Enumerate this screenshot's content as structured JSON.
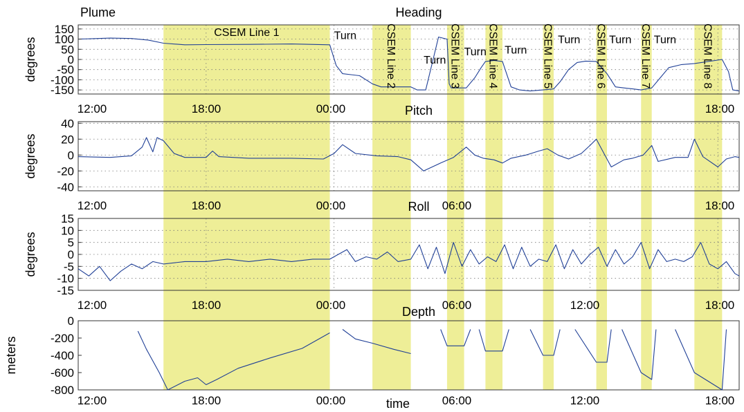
{
  "figure": {
    "plume_label": "Plume",
    "xlabel": "time"
  },
  "chart_data": [
    {
      "type": "line",
      "title": "Heading",
      "ylabel": "degrees",
      "ylim": [
        -170,
        170
      ],
      "yticks": [
        150,
        100,
        50,
        0,
        -50,
        -100,
        -150
      ],
      "ytick_labels": [
        "150",
        "100",
        "50",
        "0",
        "-50",
        "-100",
        "-150"
      ],
      "xlim": [
        12.0,
        43.0
      ],
      "xticks": [
        12,
        18,
        24,
        30,
        36,
        42
      ],
      "xtick_labels": [
        "12:00",
        "18:00",
        "00:00",
        "",
        "",
        "18:00"
      ],
      "grid": true,
      "highlight_bands": [
        {
          "label": "CSEM Line 1",
          "x": [
            16.0,
            23.8
          ]
        },
        {
          "label": "CSEM Line 2",
          "x": [
            25.8,
            27.6
          ]
        },
        {
          "label": "CSEM Line 3",
          "x": [
            29.3,
            30.1
          ]
        },
        {
          "label": "CSEM Line 4",
          "x": [
            31.1,
            31.9
          ]
        },
        {
          "label": "CSEM Line 5",
          "x": [
            33.8,
            34.3
          ]
        },
        {
          "label": "CSEM Line 6",
          "x": [
            36.3,
            36.8
          ]
        },
        {
          "label": "CSEM Line 7",
          "x": [
            38.4,
            38.9
          ]
        },
        {
          "label": "CSEM Line 8",
          "x": [
            40.9,
            42.2
          ]
        }
      ],
      "annotations": [
        {
          "text": "Turn",
          "x": 24.0,
          "y": 120
        },
        {
          "text": "Turn",
          "x": 28.2,
          "y": 0
        },
        {
          "text": "Turn",
          "x": 30.1,
          "y": 40
        },
        {
          "text": "Turn",
          "x": 32.0,
          "y": 50
        },
        {
          "text": "Turn",
          "x": 34.5,
          "y": 100
        },
        {
          "text": "Turn",
          "x": 36.9,
          "y": 100
        },
        {
          "text": "Turn",
          "x": 39.0,
          "y": 100
        }
      ],
      "series": [
        {
          "x": [
            12.0,
            13.5,
            14.5,
            15.3,
            16.0,
            17.0,
            18.0,
            20.0,
            22.0,
            23.8,
            24.1,
            24.4,
            25.2,
            25.8,
            26.2,
            27.6,
            27.9,
            28.3,
            28.9,
            29.3,
            29.4,
            29.5,
            30.2,
            30.6,
            30.9,
            31.1,
            31.5,
            31.9,
            32.3,
            32.7,
            33.2,
            33.8,
            34.3,
            34.6,
            35.0,
            35.4,
            35.8,
            36.3,
            36.8,
            37.2,
            37.6,
            38.0,
            38.4,
            38.9,
            39.3,
            39.7,
            40.3,
            40.9,
            42.2,
            42.5,
            42.7,
            43.0
          ],
          "y": [
            100,
            105,
            103,
            95,
            80,
            72,
            73,
            74,
            76,
            72,
            -30,
            -70,
            -80,
            -120,
            -135,
            -135,
            -150,
            -150,
            110,
            100,
            -120,
            -140,
            -140,
            -90,
            -40,
            -10,
            -5,
            -10,
            -135,
            -150,
            -155,
            -150,
            -145,
            -110,
            -50,
            -15,
            -8,
            -10,
            -70,
            -135,
            -140,
            -145,
            -150,
            -140,
            -90,
            -40,
            -25,
            -20,
            0,
            -60,
            -150,
            -155
          ]
        }
      ]
    },
    {
      "type": "line",
      "title": "Pitch",
      "ylabel": "degrees",
      "ylim": [
        -45,
        42
      ],
      "yticks": [
        40,
        20,
        0,
        -20,
        -40
      ],
      "ytick_labels": [
        "40",
        "20",
        "0",
        "-20",
        "-40"
      ],
      "xlim": [
        12.0,
        43.0
      ],
      "xticks": [
        12,
        18,
        24,
        30,
        36,
        42
      ],
      "xtick_labels": [
        "12:00",
        "18:00",
        "00:00",
        "06:00",
        "",
        "18:00"
      ],
      "grid": true,
      "series": [
        {
          "x": [
            12.0,
            13.5,
            14.5,
            15.0,
            15.2,
            15.5,
            15.7,
            16.0,
            16.5,
            17.0,
            18.0,
            18.3,
            18.6,
            20.0,
            22.0,
            23.5,
            24.0,
            24.4,
            25.0,
            26.0,
            27.0,
            27.6,
            28.2,
            29.0,
            29.6,
            30.2,
            30.6,
            31.0,
            31.5,
            31.9,
            32.3,
            33.0,
            33.6,
            34.0,
            34.5,
            35.0,
            35.6,
            36.0,
            36.3,
            36.7,
            37.0,
            37.6,
            38.0,
            38.5,
            38.9,
            39.2,
            40.0,
            40.6,
            40.9,
            41.3,
            42.0,
            42.4,
            42.8,
            43.0
          ],
          "y": [
            -2,
            -3,
            -1,
            10,
            22,
            4,
            22,
            18,
            2,
            -3,
            -3,
            5,
            -2,
            -4,
            -4,
            -5,
            2,
            13,
            2,
            -1,
            -2,
            -6,
            -20,
            -10,
            -3,
            10,
            0,
            -4,
            -6,
            -10,
            -4,
            0,
            5,
            8,
            0,
            -5,
            2,
            12,
            20,
            0,
            -15,
            -6,
            -4,
            0,
            12,
            -8,
            -3,
            -3,
            20,
            -2,
            -15,
            -5,
            -2,
            -3
          ]
        }
      ]
    },
    {
      "type": "line",
      "title": "Roll",
      "ylabel": "degrees",
      "ylim": [
        -15,
        15
      ],
      "yticks": [
        15,
        10,
        5,
        0,
        -5,
        -10,
        -15
      ],
      "ytick_labels": [
        "15",
        "10",
        "5",
        "0",
        "-5",
        "-10",
        "-15"
      ],
      "xlim": [
        12.0,
        43.0
      ],
      "xticks": [
        12,
        18,
        24,
        30,
        36,
        42
      ],
      "xtick_labels": [
        "12:00",
        "18:00",
        "00:00",
        "06:00",
        "12:00",
        "18:00"
      ],
      "grid": true,
      "series": [
        {
          "x": [
            12.0,
            12.5,
            13.0,
            13.5,
            14.0,
            14.5,
            15.0,
            15.5,
            16.0,
            17.0,
            18.0,
            19.0,
            20.0,
            21.0,
            22.0,
            23.0,
            23.8,
            24.2,
            24.6,
            25.0,
            25.5,
            26.0,
            26.5,
            27.0,
            27.6,
            28.0,
            28.4,
            28.8,
            29.2,
            29.6,
            30.0,
            30.4,
            30.8,
            31.2,
            31.6,
            32.0,
            32.4,
            32.8,
            33.2,
            33.6,
            34.0,
            34.4,
            34.8,
            35.2,
            35.6,
            36.0,
            36.4,
            36.8,
            37.2,
            37.6,
            38.0,
            38.4,
            38.8,
            39.2,
            39.6,
            40.0,
            40.4,
            40.8,
            41.2,
            41.6,
            42.0,
            42.4,
            42.8,
            43.0
          ],
          "y": [
            -6,
            -9,
            -5,
            -11,
            -7,
            -4,
            -6,
            -3,
            -4,
            -3,
            -3,
            -2,
            -3,
            -2,
            -3,
            -2,
            -2,
            0,
            2,
            -3,
            -1,
            -2,
            1,
            -3,
            -2,
            4,
            -6,
            3,
            -8,
            5,
            -5,
            2,
            -4,
            -1,
            -3,
            4,
            -6,
            3,
            -5,
            -2,
            -3,
            4,
            -6,
            2,
            -4,
            0,
            3,
            -5,
            2,
            -4,
            -1,
            5,
            -6,
            2,
            -3,
            -2,
            -3,
            -1,
            5,
            -4,
            -6,
            -3,
            -8,
            -9
          ]
        }
      ]
    },
    {
      "type": "line",
      "title": "Depth",
      "ylabel": "meters",
      "xlabel": "time",
      "ylim": [
        -800,
        0
      ],
      "yticks": [
        0,
        -200,
        -400,
        -600,
        -800
      ],
      "ytick_labels": [
        "0",
        "-200",
        "-400",
        "-600",
        "-800"
      ],
      "xlim": [
        12.0,
        43.0
      ],
      "xticks": [
        12,
        18,
        24,
        30,
        36,
        42
      ],
      "xtick_labels": [
        "12:00",
        "18:00",
        "00:00",
        "06:00",
        "12:00",
        "18:00"
      ],
      "grid": false,
      "series": [
        {
          "x": [
            14.8,
            15.2,
            15.8,
            16.2,
            17.0,
            17.6,
            18.0,
            18.5,
            19.5,
            21.0,
            22.5,
            23.8
          ],
          "y": [
            -120,
            -330,
            -600,
            -800,
            -700,
            -660,
            -740,
            -680,
            -550,
            -430,
            -320,
            -140
          ]
        },
        {
          "x": [
            24.4,
            25.0,
            25.8,
            26.8,
            27.6
          ],
          "y": [
            -100,
            -210,
            -260,
            -330,
            -380
          ]
        },
        {
          "x": [
            29.0,
            29.3,
            30.1,
            30.4
          ],
          "y": [
            -100,
            -290,
            -290,
            -100
          ]
        },
        {
          "x": [
            30.8,
            31.1,
            31.9,
            32.2
          ],
          "y": [
            -100,
            -350,
            -350,
            -100
          ]
        },
        {
          "x": [
            33.2,
            33.8,
            34.3,
            34.6
          ],
          "y": [
            -100,
            -400,
            -400,
            -100
          ]
        },
        {
          "x": [
            35.3,
            36.3,
            36.8,
            37.0
          ],
          "y": [
            -100,
            -480,
            -480,
            -100
          ]
        },
        {
          "x": [
            37.5,
            38.4,
            38.9,
            39.1
          ],
          "y": [
            -100,
            -600,
            -680,
            -100
          ]
        },
        {
          "x": [
            40.0,
            40.9,
            42.2,
            42.4
          ],
          "y": [
            -100,
            -600,
            -800,
            -100
          ]
        }
      ]
    }
  ]
}
